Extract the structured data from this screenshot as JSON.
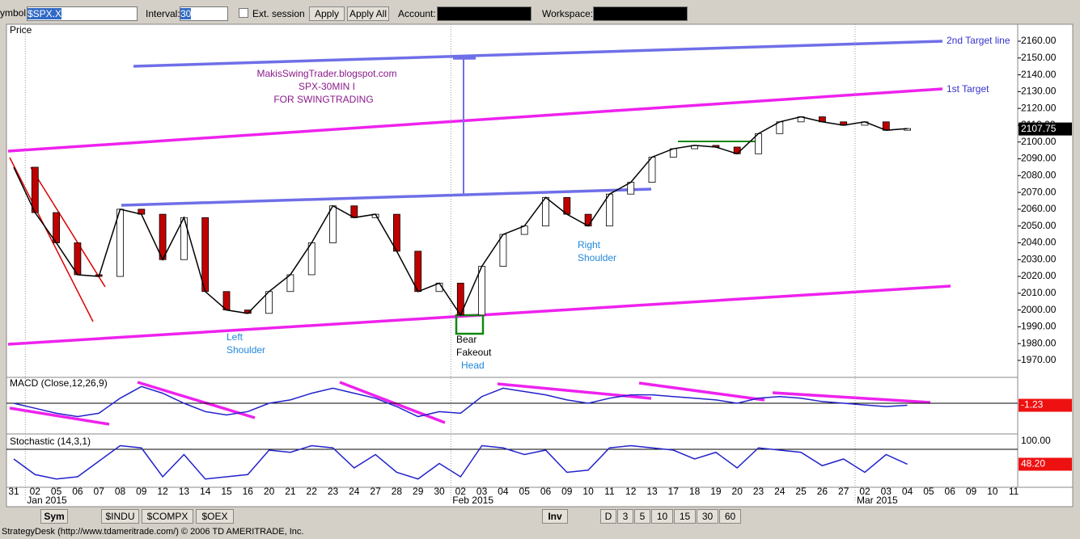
{
  "toolbar": {
    "symbol_label": "ymbol:",
    "symbol": "$SPX.X",
    "interval_label": "Interval:",
    "interval": "30",
    "ext_session": "Ext. session",
    "apply": "Apply",
    "apply_all": "Apply All",
    "account_label": "Account:",
    "workspace_label": "Workspace:"
  },
  "chart": {
    "price_title": "Price",
    "price_ticks": [
      {
        "value": 2160,
        "label": "2160.00"
      },
      {
        "value": 2150,
        "label": "2150.00"
      },
      {
        "value": 2140,
        "label": "2140.00"
      },
      {
        "value": 2130,
        "label": "2130.00"
      },
      {
        "value": 2120,
        "label": "2120.00"
      },
      {
        "value": 2110,
        "label": "2110.00"
      },
      {
        "value": 2100,
        "label": "2100.00"
      },
      {
        "value": 2090,
        "label": "2090.00"
      },
      {
        "value": 2080,
        "label": "2080.00"
      },
      {
        "value": 2070,
        "label": "2070.00"
      },
      {
        "value": 2060,
        "label": "2060.00"
      },
      {
        "value": 2050,
        "label": "2050.00"
      },
      {
        "value": 2040,
        "label": "2040.00"
      },
      {
        "value": 2030,
        "label": "2030.00"
      },
      {
        "value": 2020,
        "label": "2020.00"
      },
      {
        "value": 2010,
        "label": "2010.00"
      },
      {
        "value": 2000,
        "label": "2000.00"
      },
      {
        "value": 1990,
        "label": "1990.00"
      },
      {
        "value": 1980,
        "label": "1980.00"
      },
      {
        "value": 1970,
        "label": "1970.00"
      }
    ],
    "current_price": 2107.75,
    "dates": [
      "31",
      "02",
      "05",
      "06",
      "07",
      "08",
      "09",
      "12",
      "13",
      "14",
      "15",
      "16",
      "20",
      "21",
      "22",
      "23",
      "24",
      "27",
      "28",
      "29",
      "30",
      "02",
      "03",
      "04",
      "05",
      "06",
      "09",
      "10",
      "11",
      "12",
      "13",
      "17",
      "18",
      "19",
      "20",
      "23",
      "24",
      "25",
      "26",
      "27",
      "02",
      "03",
      "04",
      "05",
      "06",
      "09",
      "10",
      "11"
    ],
    "months": [
      {
        "index": 1,
        "label": "Jan 2015"
      },
      {
        "index": 21,
        "label": "Feb 2015"
      },
      {
        "index": 40,
        "label": "Mar 2015"
      }
    ],
    "closes": [
      2085,
      2058,
      2040,
      2021,
      2020,
      2060,
      2057,
      2030,
      2055,
      2011,
      2000,
      1998,
      2011,
      2021,
      2040,
      2062,
      2055,
      2057,
      2035,
      2011,
      2016,
      1997,
      2026,
      2045,
      2050,
      2067,
      2057,
      2050,
      2069,
      2076,
      2091,
      2096,
      2098,
      2097,
      2093,
      2105,
      2112,
      2115,
      2112,
      2110,
      2112,
      2107,
      2108,
      null,
      null,
      null,
      null,
      null
    ],
    "annotations": {
      "blog": "MakisSwingTrader.blogspot.com",
      "spx": "SPX-30MIN  I",
      "swing": "FOR SWINGTRADING",
      "target2": "2nd Target line",
      "target1": "1st Target",
      "left": "Left",
      "left_shoulder": "Shoulder",
      "right": "Right",
      "right_shoulder": "Shoulder",
      "bear": "Bear",
      "fakeout": "Fakeout",
      "head": "Head"
    },
    "macd": {
      "title": "MACD (Close,12,26,9)",
      "current": -1.23,
      "ylim": [
        -15,
        15
      ],
      "values": [
        0,
        -3,
        -6,
        -8,
        -6,
        3,
        10,
        6,
        0,
        -5,
        -7,
        -5,
        0,
        2,
        6,
        9,
        6,
        3,
        -2,
        -8,
        -5,
        -6,
        4,
        9,
        7,
        5,
        2,
        0,
        3,
        5,
        5,
        4,
        3,
        2,
        0,
        3,
        4,
        3,
        1,
        0,
        -1,
        -2,
        -1.23,
        null,
        null,
        null,
        null,
        null
      ]
    },
    "stochastic": {
      "title": "Stochastic (14,3,1)",
      "ylim": [
        0,
        100
      ],
      "top_tick": {
        "value": 100,
        "label": "100.00"
      },
      "current": {
        "value": 48.2,
        "label": "48.20"
      },
      "values": [
        60,
        25,
        15,
        20,
        55,
        90,
        85,
        20,
        70,
        15,
        20,
        25,
        80,
        75,
        90,
        85,
        40,
        70,
        30,
        15,
        50,
        20,
        90,
        85,
        70,
        80,
        30,
        35,
        85,
        90,
        85,
        80,
        60,
        75,
        40,
        85,
        80,
        75,
        45,
        60,
        30,
        70,
        48.2,
        null,
        null,
        null,
        null,
        null
      ]
    }
  },
  "tabs": {
    "sym": "Sym",
    "indu": "$INDU",
    "compx": "$COMPX",
    "oex": "$OEX",
    "inv": "Inv",
    "d": "D",
    "i3": "3",
    "i5": "5",
    "i10": "10",
    "i15": "15",
    "i30": "30",
    "i60": "60"
  },
  "status": "StrategyDesk (http://www.tdameritrade.com/) © 2006 TD AMERITRADE, Inc."
}
